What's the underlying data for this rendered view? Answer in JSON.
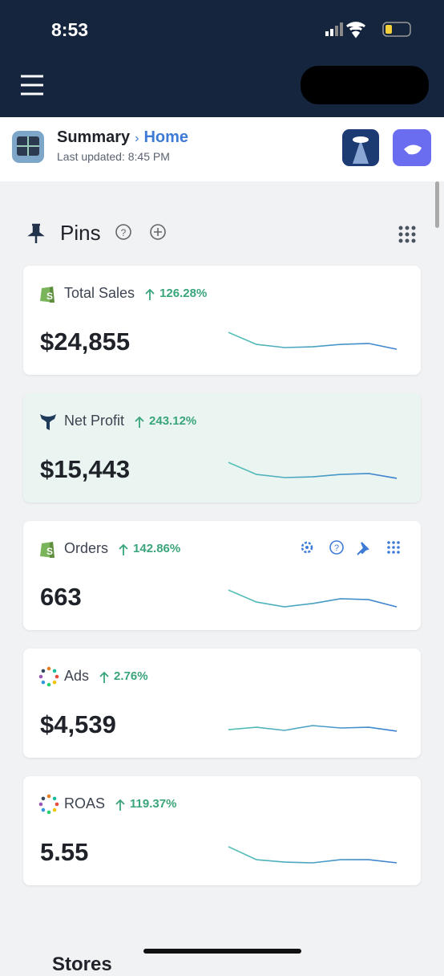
{
  "status_bar": {
    "time": "8:53"
  },
  "header": {
    "section": "Summary",
    "page": "Home",
    "last_updated": "Last updated: 8:45 PM"
  },
  "pins": {
    "title": "Pins"
  },
  "cards": [
    {
      "title": "Total Sales",
      "change": "126.28%",
      "value": "$24,855",
      "icon": "shopify",
      "trend": [
        93,
        43,
        30,
        33,
        43,
        47,
        23
      ]
    },
    {
      "title": "Net Profit",
      "change": "243.12%",
      "value": "$15,443",
      "icon": "whale",
      "highlight": true,
      "trend": [
        83,
        33,
        20,
        23,
        33,
        37,
        17
      ]
    },
    {
      "title": "Orders",
      "change": "142.86%",
      "value": "663",
      "icon": "shopify",
      "tools": true,
      "trend": [
        83,
        33,
        13,
        27,
        47,
        43,
        13
      ]
    },
    {
      "title": "Ads",
      "change": "2.76%",
      "value": "$4,539",
      "icon": "dots",
      "trend": [
        33,
        43,
        30,
        50,
        40,
        43,
        27
      ]
    },
    {
      "title": "ROAS",
      "change": "119.37%",
      "value": "5.55",
      "icon": "dots",
      "trend": [
        77,
        23,
        13,
        10,
        23,
        23,
        10
      ]
    }
  ],
  "next_section": {
    "title": "Stores"
  }
}
